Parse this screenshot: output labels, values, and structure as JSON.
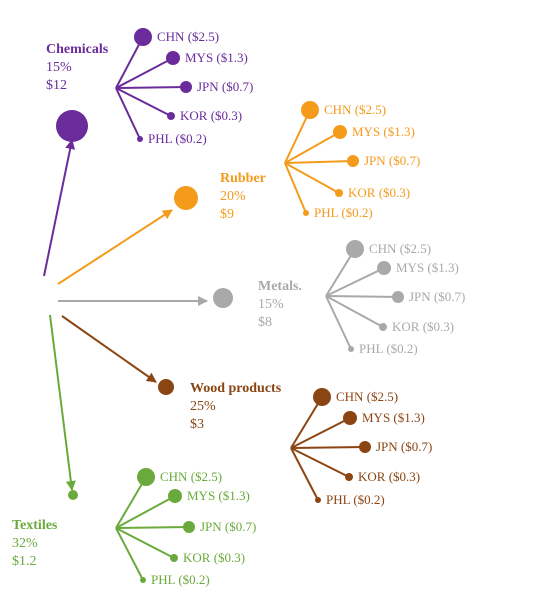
{
  "colors": {
    "chemicals": "#6a2c9b",
    "rubber": "#f49b1b",
    "metals": "#a9a9a9",
    "wood": "#8b4513",
    "textiles": "#6aaa3c"
  },
  "sectors": [
    {
      "key": "chemicals",
      "color_key": "chemicals",
      "name": "Chemicals",
      "share": "15%",
      "value": "$12",
      "countries": [
        "CHN ($2.5)",
        "MYS ($1.3)",
        "JPN ($0.7)",
        "KOR ($0.3)",
        "PHL ($0.2)"
      ]
    },
    {
      "key": "rubber",
      "color_key": "rubber",
      "name": "Rubber",
      "share": "20%",
      "value": "$9",
      "countries": [
        "CHN ($2.5)",
        "MYS ($1.3)",
        "JPN ($0.7)",
        "KOR ($0.3)",
        "PHL ($0.2)"
      ]
    },
    {
      "key": "metals",
      "color_key": "metals",
      "name": "Metals.",
      "share": "15%",
      "value": "$8",
      "countries": [
        "CHN ($2.5)",
        "MYS ($1.3)",
        "JPN ($0.7)",
        "KOR ($0.3)",
        "PHL ($0.2)"
      ]
    },
    {
      "key": "wood",
      "color_key": "wood",
      "name": "Wood products",
      "share": "25%",
      "value": "$3",
      "countries": [
        "CHN ($2.5)",
        "MYS ($1.3)",
        "JPN ($0.7)",
        "KOR ($0.3)",
        "PHL ($0.2)"
      ]
    },
    {
      "key": "textiles",
      "color_key": "textiles",
      "name": "Textiles",
      "share": "32%",
      "value": "$1.2",
      "countries": [
        "CHN ($2.5)",
        "MYS ($1.3)",
        "JPN ($0.7)",
        "KOR ($0.3)",
        "PHL ($0.2)"
      ]
    }
  ]
}
